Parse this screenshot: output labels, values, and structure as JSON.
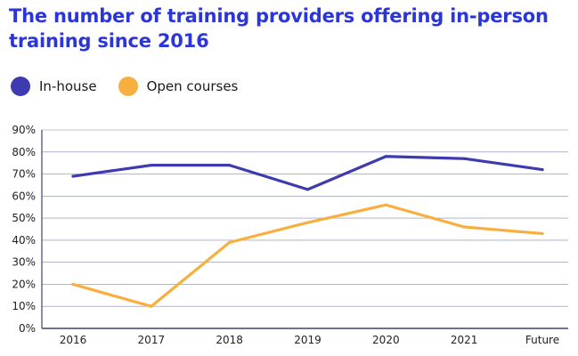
{
  "title": "The number of training providers offering in-person\ntraining since 2016",
  "colors": {
    "title": "#2b36d9",
    "inhouse": "#3e3ab0",
    "open": "#f7b040",
    "grid": "#1f2a6b",
    "axis": "#1a1f4d"
  },
  "legend": [
    {
      "label": "In-house",
      "color": "#3e3ab0"
    },
    {
      "label": "Open courses",
      "color": "#f7b040"
    }
  ],
  "chart_data": {
    "type": "line",
    "title": "The number of training providers offering in-person training since 2016",
    "xlabel": "",
    "ylabel": "",
    "categories": [
      "2016",
      "2017",
      "2018",
      "2019",
      "2020",
      "2021",
      "Future"
    ],
    "series": [
      {
        "name": "In-house",
        "color": "#3e3ab0",
        "values": [
          69,
          74,
          74,
          63,
          78,
          77,
          72
        ]
      },
      {
        "name": "Open courses",
        "color": "#f7b040",
        "values": [
          20,
          10,
          39,
          48,
          56,
          46,
          43
        ]
      }
    ],
    "ylim": [
      0,
      90
    ],
    "yticks": [
      0,
      10,
      20,
      30,
      40,
      50,
      60,
      70,
      80,
      90
    ],
    "ytick_labels": [
      "0%",
      "10%",
      "20%",
      "30%",
      "40%",
      "50%",
      "60%",
      "70%",
      "80%",
      "90%"
    ],
    "grid": true,
    "legend_position": "top-left"
  }
}
